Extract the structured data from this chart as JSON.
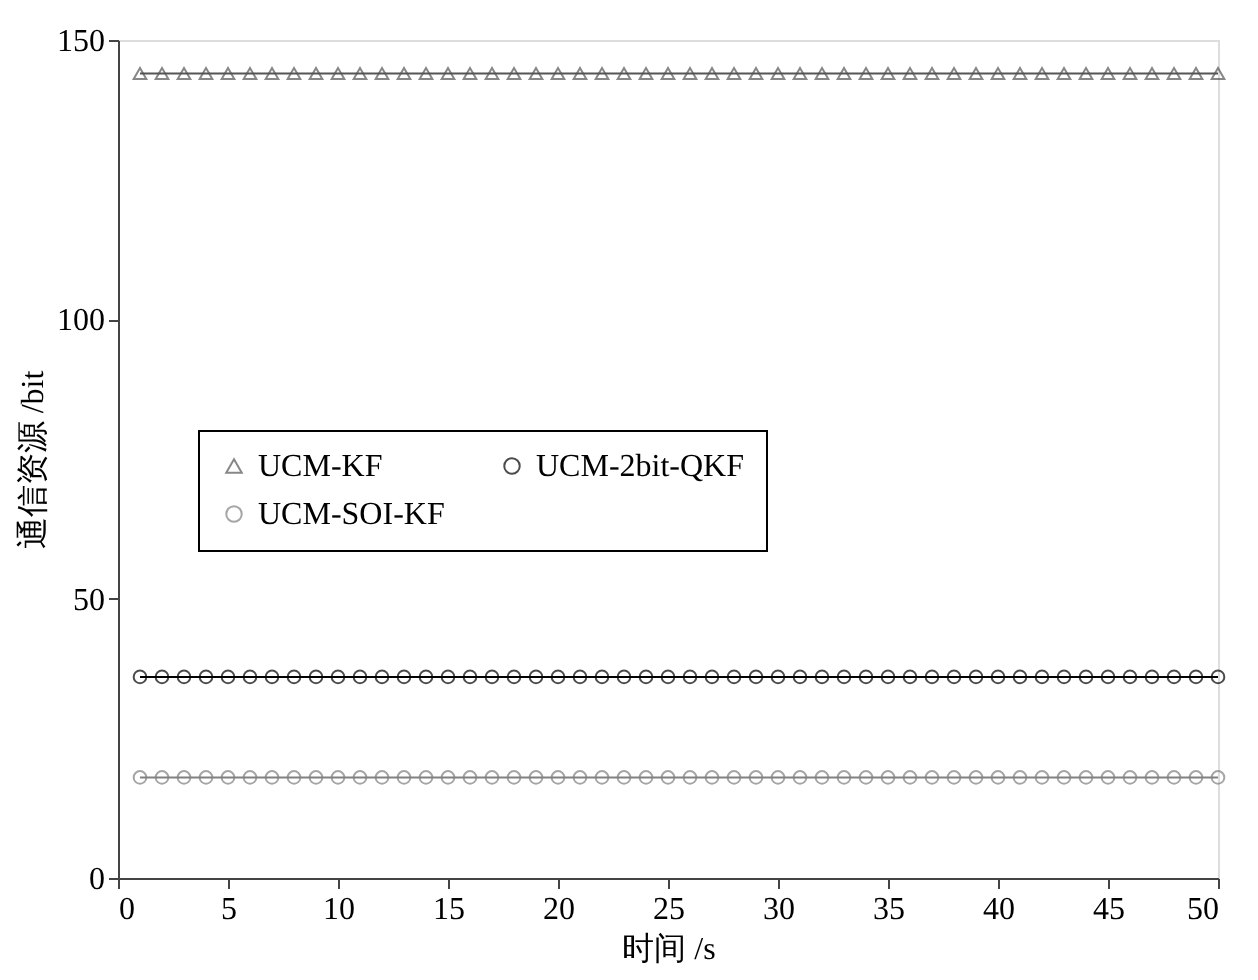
{
  "chart_data": {
    "type": "line",
    "xlabel": "时间 /s",
    "ylabel": "通信资源 /bit",
    "x": [
      1,
      2,
      3,
      4,
      5,
      6,
      7,
      8,
      9,
      10,
      11,
      12,
      13,
      14,
      15,
      16,
      17,
      18,
      19,
      20,
      21,
      22,
      23,
      24,
      25,
      26,
      27,
      28,
      29,
      30,
      31,
      32,
      33,
      34,
      35,
      36,
      37,
      38,
      39,
      40,
      41,
      42,
      43,
      44,
      45,
      46,
      47,
      48,
      49,
      50
    ],
    "series": [
      {
        "name": "UCM-KF",
        "color": "#555555",
        "marker": "triangle",
        "values": [
          144,
          144,
          144,
          144,
          144,
          144,
          144,
          144,
          144,
          144,
          144,
          144,
          144,
          144,
          144,
          144,
          144,
          144,
          144,
          144,
          144,
          144,
          144,
          144,
          144,
          144,
          144,
          144,
          144,
          144,
          144,
          144,
          144,
          144,
          144,
          144,
          144,
          144,
          144,
          144,
          144,
          144,
          144,
          144,
          144,
          144,
          144,
          144,
          144,
          144
        ]
      },
      {
        "name": "UCM-SOI-KF",
        "color": "#808080",
        "marker": "circle",
        "values": [
          18,
          18,
          18,
          18,
          18,
          18,
          18,
          18,
          18,
          18,
          18,
          18,
          18,
          18,
          18,
          18,
          18,
          18,
          18,
          18,
          18,
          18,
          18,
          18,
          18,
          18,
          18,
          18,
          18,
          18,
          18,
          18,
          18,
          18,
          18,
          18,
          18,
          18,
          18,
          18,
          18,
          18,
          18,
          18,
          18,
          18,
          18,
          18,
          18,
          18
        ]
      },
      {
        "name": "UCM-2bit-QKF",
        "color": "#000000",
        "marker": "circle",
        "values": [
          36,
          36,
          36,
          36,
          36,
          36,
          36,
          36,
          36,
          36,
          36,
          36,
          36,
          36,
          36,
          36,
          36,
          36,
          36,
          36,
          36,
          36,
          36,
          36,
          36,
          36,
          36,
          36,
          36,
          36,
          36,
          36,
          36,
          36,
          36,
          36,
          36,
          36,
          36,
          36,
          36,
          36,
          36,
          36,
          36,
          36,
          36,
          36,
          36,
          36
        ]
      }
    ],
    "xlim": [
      0,
      50
    ],
    "xticks": [
      0,
      5,
      10,
      15,
      20,
      25,
      30,
      35,
      40,
      45,
      50
    ],
    "ylim": [
      0,
      150
    ],
    "yticks": [
      0,
      50,
      100,
      150
    ],
    "grid": false,
    "legend": "left"
  }
}
